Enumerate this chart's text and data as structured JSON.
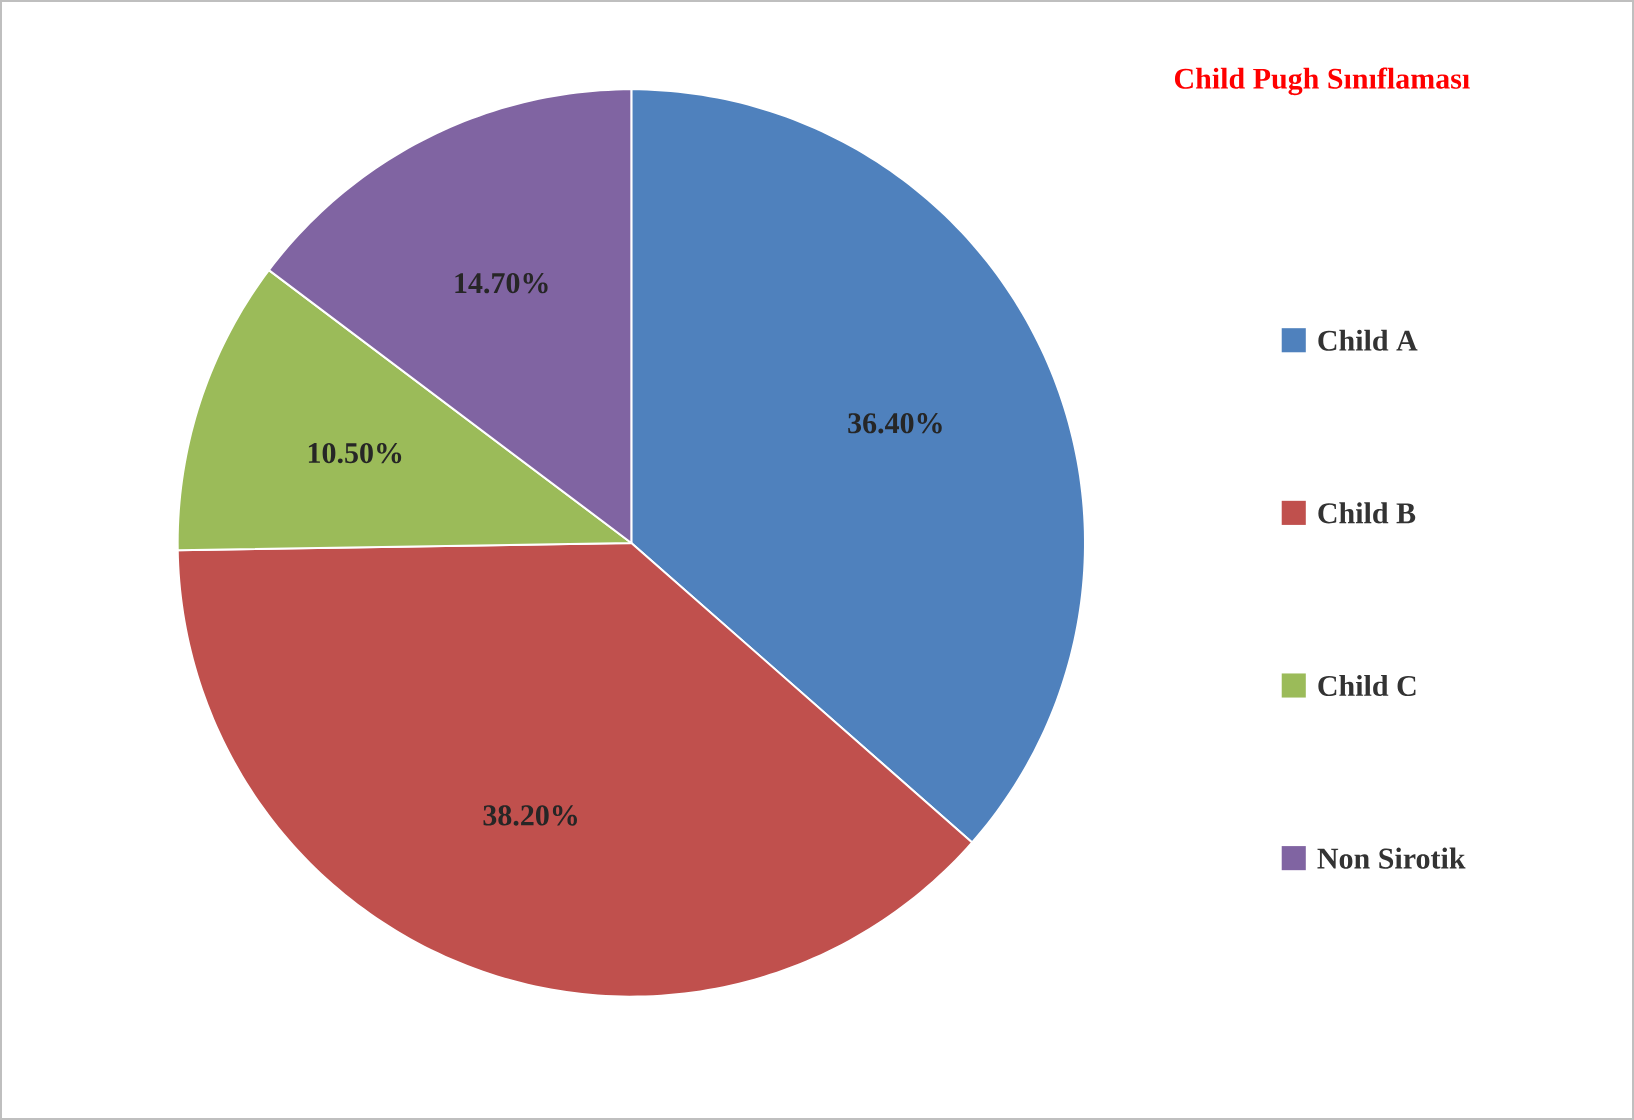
{
  "chart_data": {
    "type": "pie",
    "title": "Child Pugh Sınıflaması",
    "categories": [
      "Child A",
      "Child B",
      "Child C",
      "Non Sirotik"
    ],
    "values": [
      36.4,
      38.2,
      10.5,
      14.7
    ],
    "value_labels": [
      "36.40%",
      "38.20%",
      "10.50%",
      "14.70%"
    ],
    "colors": [
      "#4f81bd",
      "#c0504d",
      "#9bbb59",
      "#8064a2"
    ],
    "legend": "right"
  }
}
